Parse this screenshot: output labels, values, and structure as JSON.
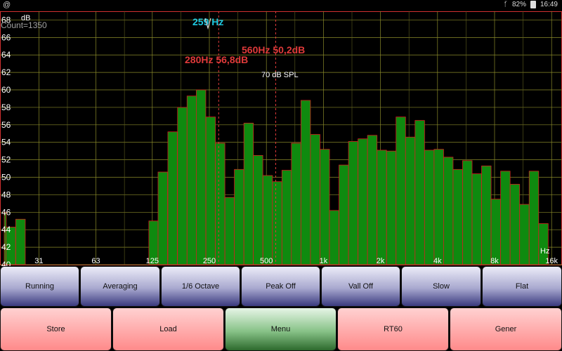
{
  "status_bar": {
    "left_icon": "at-sign-icon",
    "bluetooth_icon": "bluetooth-icon",
    "battery": "82%",
    "time": "16:49"
  },
  "analyzer": {
    "freq_readout": "259 Hz",
    "readout_color": "#1ec8e0",
    "count_text": "Count=1350",
    "db_unit": "dB",
    "hz_unit": "Hz",
    "spl_reference": "70 dB SPL",
    "marker_color": "#e03a3a",
    "markers": [
      {
        "label": "280Hz  56,8dB",
        "freq": 280,
        "db": 56.8
      },
      {
        "label": "560Hz  50,2dB",
        "freq": 560,
        "db": 50.2
      }
    ]
  },
  "chart_data": {
    "type": "bar",
    "title": "",
    "xlabel": "Hz",
    "ylabel": "dB",
    "ylim": [
      40,
      69
    ],
    "x_scale": "log2 (1/6 octave bands)",
    "grid": true,
    "y_ticks": [
      40,
      42,
      44,
      46,
      48,
      50,
      52,
      54,
      56,
      58,
      60,
      62,
      64,
      66,
      68
    ],
    "x_ticks": [
      {
        "label": "31",
        "freq": 31.5
      },
      {
        "label": "63",
        "freq": 63
      },
      {
        "label": "125",
        "freq": 125
      },
      {
        "label": "250",
        "freq": 250
      },
      {
        "label": "500",
        "freq": 500
      },
      {
        "label": "1k",
        "freq": 1000
      },
      {
        "label": "2k",
        "freq": 2000
      },
      {
        "label": "4k",
        "freq": 4000
      },
      {
        "label": "8k",
        "freq": 8000
      },
      {
        "label": "16k",
        "freq": 16000
      }
    ],
    "bar_color": "#0f8a0f",
    "bar_edge_color": "#d02020",
    "bands": [
      {
        "freq": 20,
        "db": 46.0
      },
      {
        "freq": 22.4,
        "db": 44.3
      },
      {
        "freq": 25.2,
        "db": 45.2
      },
      {
        "freq": 28.3,
        "db": 40
      },
      {
        "freq": 31.7,
        "db": 40
      },
      {
        "freq": 35.6,
        "db": 40
      },
      {
        "freq": 40.0,
        "db": 40
      },
      {
        "freq": 44.9,
        "db": 40
      },
      {
        "freq": 50.4,
        "db": 40
      },
      {
        "freq": 56.6,
        "db": 40
      },
      {
        "freq": 63.5,
        "db": 40
      },
      {
        "freq": 71.3,
        "db": 40
      },
      {
        "freq": 80.0,
        "db": 40
      },
      {
        "freq": 89.8,
        "db": 40
      },
      {
        "freq": 100.8,
        "db": 40
      },
      {
        "freq": 113,
        "db": 40
      },
      {
        "freq": 127,
        "db": 45.0
      },
      {
        "freq": 142,
        "db": 50.6
      },
      {
        "freq": 160,
        "db": 55.2
      },
      {
        "freq": 180,
        "db": 58.0
      },
      {
        "freq": 202,
        "db": 59.3
      },
      {
        "freq": 226,
        "db": 60.0
      },
      {
        "freq": 254,
        "db": 56.9
      },
      {
        "freq": 285,
        "db": 53.9
      },
      {
        "freq": 320,
        "db": 47.7
      },
      {
        "freq": 359,
        "db": 50.9
      },
      {
        "freq": 403,
        "db": 56.2
      },
      {
        "freq": 452,
        "db": 52.5
      },
      {
        "freq": 508,
        "db": 50.2
      },
      {
        "freq": 570,
        "db": 49.5
      },
      {
        "freq": 640,
        "db": 50.8
      },
      {
        "freq": 718,
        "db": 53.9
      },
      {
        "freq": 806,
        "db": 58.8
      },
      {
        "freq": 905,
        "db": 54.9
      },
      {
        "freq": 1016,
        "db": 53.2
      },
      {
        "freq": 1140,
        "db": 46.2
      },
      {
        "freq": 1280,
        "db": 51.4
      },
      {
        "freq": 1437,
        "db": 54.1
      },
      {
        "freq": 1613,
        "db": 54.4
      },
      {
        "freq": 1810,
        "db": 54.8
      },
      {
        "freq": 2032,
        "db": 53.1
      },
      {
        "freq": 2281,
        "db": 53.0
      },
      {
        "freq": 2560,
        "db": 56.9
      },
      {
        "freq": 2874,
        "db": 54.6
      },
      {
        "freq": 3225,
        "db": 56.5
      },
      {
        "freq": 3620,
        "db": 53.1
      },
      {
        "freq": 4064,
        "db": 53.2
      },
      {
        "freq": 4561,
        "db": 52.3
      },
      {
        "freq": 5120,
        "db": 50.9
      },
      {
        "freq": 5747,
        "db": 51.9
      },
      {
        "freq": 6451,
        "db": 50.4
      },
      {
        "freq": 7241,
        "db": 51.3
      },
      {
        "freq": 8128,
        "db": 47.5
      },
      {
        "freq": 9123,
        "db": 50.7
      },
      {
        "freq": 10240,
        "db": 49.2
      },
      {
        "freq": 11494,
        "db": 46.9
      },
      {
        "freq": 12902,
        "db": 50.7
      },
      {
        "freq": 14482,
        "db": 44.7
      }
    ]
  },
  "toolbar_top": [
    {
      "id": "running",
      "label": "Running"
    },
    {
      "id": "averaging",
      "label": "Averaging"
    },
    {
      "id": "octave",
      "label": "1/6 Octave"
    },
    {
      "id": "peak",
      "label": "Peak Off"
    },
    {
      "id": "vall",
      "label": "Vall Off"
    },
    {
      "id": "slow",
      "label": "Slow"
    },
    {
      "id": "flat",
      "label": "Flat"
    }
  ],
  "toolbar_bottom": [
    {
      "id": "store",
      "label": "Store",
      "style": "red"
    },
    {
      "id": "load",
      "label": "Load",
      "style": "red"
    },
    {
      "id": "menu",
      "label": "Menu",
      "style": "green"
    },
    {
      "id": "rt60",
      "label": "RT60",
      "style": "red"
    },
    {
      "id": "gener",
      "label": "Gener",
      "style": "red"
    }
  ]
}
